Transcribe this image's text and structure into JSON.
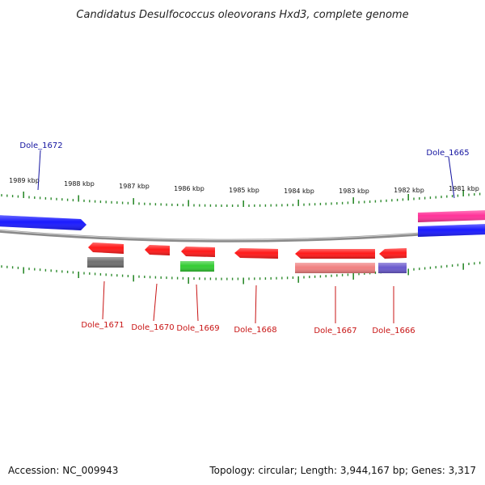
{
  "title": "Candidatus Desulfococcus oleovorans Hxd3, complete genome",
  "footer": {
    "accession": "Accession: NC_009943",
    "stats": "Topology: circular; Length: 3,944,167 bp; Genes: 3,317"
  },
  "colors": {
    "backbone": "#8a8a8a",
    "tick": "#2e8b2e",
    "label_forward": "#1414a0",
    "label_reverse": "#c81414"
  },
  "ticks": [
    "1989 kbp",
    "1988 kbp",
    "1987 kbp",
    "1986 kbp",
    "1985 kbp",
    "1984 kbp",
    "1983 kbp",
    "1982 kbp",
    "1981 kbp"
  ],
  "features": [
    {
      "id": "f-left-blue",
      "strand": "forward",
      "color": "#1a1aff"
    },
    {
      "id": "f-right-magenta",
      "strand": "forward",
      "color": "#ff3399"
    },
    {
      "id": "f-right-blue",
      "strand": "forward",
      "color": "#1a1aff"
    },
    {
      "id": "f-1671-red",
      "strand": "reverse",
      "color": "#ff1a1a"
    },
    {
      "id": "f-1671-gray",
      "strand": "reverse",
      "color": "#707070"
    },
    {
      "id": "f-1670-red",
      "strand": "reverse",
      "color": "#ff1a1a"
    },
    {
      "id": "f-1669-red",
      "strand": "reverse",
      "color": "#ff1a1a"
    },
    {
      "id": "f-1669-green",
      "strand": "reverse",
      "color": "#33cc33"
    },
    {
      "id": "f-1668-red",
      "strand": "reverse",
      "color": "#ff1a1a"
    },
    {
      "id": "f-1667-red",
      "strand": "reverse",
      "color": "#ff1a1a"
    },
    {
      "id": "f-1667-pink",
      "strand": "reverse",
      "color": "#f08080"
    },
    {
      "id": "f-1666-red",
      "strand": "reverse",
      "color": "#ff1a1a"
    },
    {
      "id": "f-1666-purple",
      "strand": "reverse",
      "color": "#6a5acd"
    }
  ],
  "gene_labels": [
    {
      "id": "lab-1672",
      "text": "Dole_1672",
      "strand": "forward"
    },
    {
      "id": "lab-1665",
      "text": "Dole_1665",
      "strand": "forward"
    },
    {
      "id": "lab-1671",
      "text": "Dole_1671",
      "strand": "reverse"
    },
    {
      "id": "lab-1670",
      "text": "Dole_1670",
      "strand": "reverse"
    },
    {
      "id": "lab-1669",
      "text": "Dole_1669",
      "strand": "reverse"
    },
    {
      "id": "lab-1668",
      "text": "Dole_1668",
      "strand": "reverse"
    },
    {
      "id": "lab-1667",
      "text": "Dole_1667",
      "strand": "reverse"
    },
    {
      "id": "lab-1666",
      "text": "Dole_1666",
      "strand": "reverse"
    }
  ]
}
